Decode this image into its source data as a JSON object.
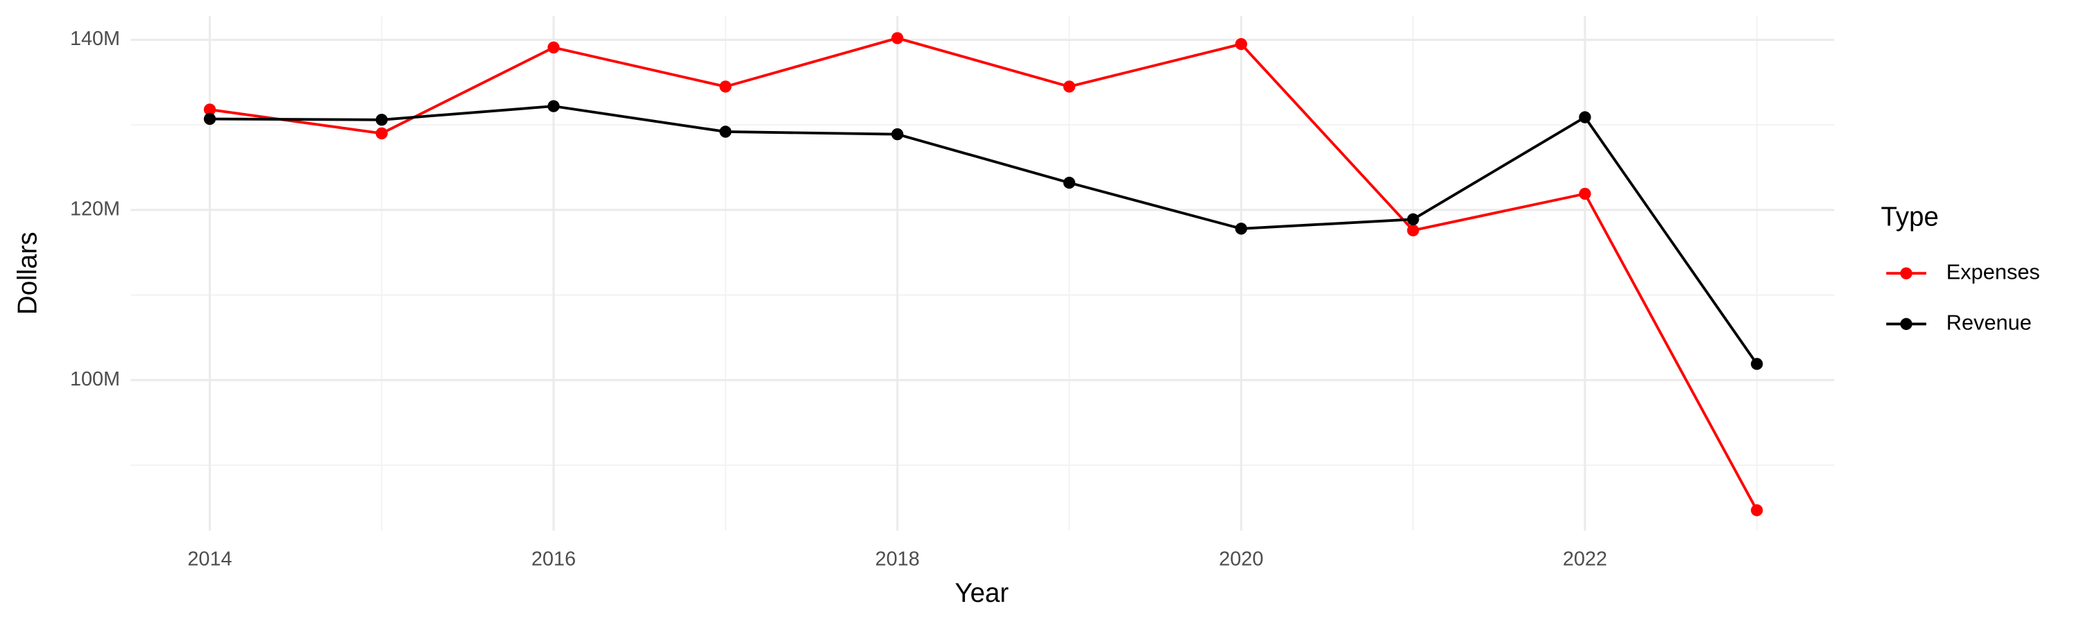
{
  "chart_data": {
    "type": "line",
    "x_label": "Year",
    "y_label": "Dollars",
    "legend_title": "Type",
    "legend_position": "right",
    "grid": true,
    "x": [
      2014,
      2015,
      2016,
      2017,
      2018,
      2019,
      2020,
      2021,
      2022,
      2023
    ],
    "series": [
      {
        "name": "Expenses",
        "color": "#ff0000",
        "values": [
          131800000,
          129000000,
          139100000,
          134500000,
          140200000,
          134500000,
          139500000,
          117600000,
          121900000,
          84700000
        ]
      },
      {
        "name": "Revenue",
        "color": "#000000",
        "values": [
          130700000,
          130600000,
          132200000,
          129200000,
          128900000,
          123200000,
          117800000,
          118900000,
          130900000,
          101900000
        ]
      }
    ],
    "xlim": [
      2013.54,
      2023.45
    ],
    "xticks": [
      2014,
      2016,
      2018,
      2020,
      2022
    ],
    "ylim": [
      82300000,
      142800000
    ],
    "yticks": [
      {
        "value": 100000000,
        "label": "100M"
      },
      {
        "value": 120000000,
        "label": "120M"
      },
      {
        "value": 140000000,
        "label": "140M"
      }
    ]
  }
}
